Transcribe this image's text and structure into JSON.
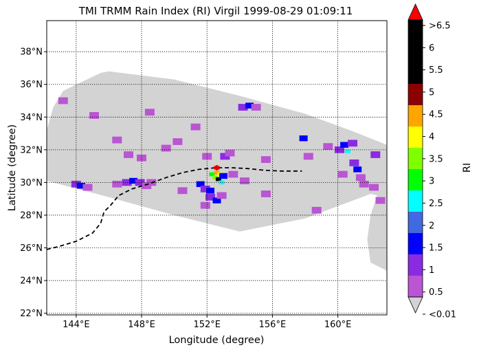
{
  "chart_data": {
    "type": "heatmap",
    "title": "TMI TRMM Rain Index (RI) Virgil 1999-08-29 01:09:11",
    "xlabel": "Longitude (degree)",
    "ylabel": "Latitude (degree)",
    "xlim": [
      142.2,
      163.0
    ],
    "ylim": [
      21.9,
      39.9
    ],
    "grid": true,
    "xticks": [
      {
        "value": 144,
        "label": "144°E"
      },
      {
        "value": 148,
        "label": "148°E"
      },
      {
        "value": 152,
        "label": "152°E"
      },
      {
        "value": 156,
        "label": "156°E"
      },
      {
        "value": 160,
        "label": "160°E"
      }
    ],
    "yticks": [
      {
        "value": 22,
        "label": "22°N"
      },
      {
        "value": 24,
        "label": "24°N"
      },
      {
        "value": 26,
        "label": "26°N"
      },
      {
        "value": 28,
        "label": "28°N"
      },
      {
        "value": 30,
        "label": "30°N"
      },
      {
        "value": 32,
        "label": "32°N"
      },
      {
        "value": 34,
        "label": "34°N"
      },
      {
        "value": 36,
        "label": "36°N"
      },
      {
        "value": 38,
        "label": "38°N"
      }
    ],
    "swath": [
      [
        143.2,
        35.6
      ],
      [
        145.5,
        36.7
      ],
      [
        146.0,
        36.8
      ],
      [
        150.0,
        36.3
      ],
      [
        154.0,
        35.3
      ],
      [
        158.0,
        34.2
      ],
      [
        161.0,
        33.1
      ],
      [
        163.0,
        32.3
      ],
      [
        163.0,
        24.6
      ],
      [
        162.0,
        25.1
      ],
      [
        161.8,
        26.5
      ],
      [
        162.0,
        28.0
      ],
      [
        162.4,
        29.2
      ],
      [
        162.0,
        29.3
      ],
      [
        158.0,
        27.8
      ],
      [
        154.0,
        27.0
      ],
      [
        150.0,
        28.0
      ],
      [
        146.0,
        29.1
      ],
      [
        142.2,
        30.1
      ],
      [
        142.2,
        33.2
      ],
      [
        142.6,
        34.6
      ]
    ],
    "swath_color": "#d3d3d3",
    "rain_cells": [
      {
        "lon": 147.1,
        "lat": 30.0,
        "ri": 0.8
      },
      {
        "lon": 147.5,
        "lat": 30.1,
        "ri": 1.2
      },
      {
        "lon": 147.9,
        "lat": 30.0,
        "ri": 0.6
      },
      {
        "lon": 148.3,
        "lat": 29.8,
        "ri": 0.4
      },
      {
        "lon": 148.6,
        "lat": 30.0,
        "ri": 0.3
      },
      {
        "lon": 144.0,
        "lat": 29.9,
        "ri": 0.5
      },
      {
        "lon": 144.3,
        "lat": 29.8,
        "ri": 1.1
      },
      {
        "lon": 144.7,
        "lat": 29.7,
        "ri": 0.3
      },
      {
        "lon": 146.5,
        "lat": 29.9,
        "ri": 0.2
      },
      {
        "lon": 151.6,
        "lat": 29.9,
        "ri": 1.3
      },
      {
        "lon": 151.9,
        "lat": 29.6,
        "ri": 0.8
      },
      {
        "lon": 152.2,
        "lat": 29.5,
        "ri": 1.1
      },
      {
        "lon": 152.3,
        "lat": 30.5,
        "ri": 2.5
      },
      {
        "lon": 152.5,
        "lat": 30.3,
        "ri": 3.2
      },
      {
        "lon": 152.6,
        "lat": 30.6,
        "ri": 4.2
      },
      {
        "lon": 152.7,
        "lat": 30.2,
        "ri": 5.8
      },
      {
        "lon": 152.8,
        "lat": 30.5,
        "ri": 3.7
      },
      {
        "lon": 152.9,
        "lat": 30.0,
        "ri": 2.1
      },
      {
        "lon": 152.6,
        "lat": 30.9,
        "ri": 6.8
      },
      {
        "lon": 153.0,
        "lat": 30.4,
        "ri": 1.4
      },
      {
        "lon": 152.2,
        "lat": 29.1,
        "ri": 0.6
      },
      {
        "lon": 152.6,
        "lat": 28.9,
        "ri": 1.2
      },
      {
        "lon": 152.9,
        "lat": 29.2,
        "ri": 0.4
      },
      {
        "lon": 151.9,
        "lat": 28.6,
        "ri": 0.3
      },
      {
        "lon": 153.1,
        "lat": 31.6,
        "ri": 0.6
      },
      {
        "lon": 153.4,
        "lat": 31.8,
        "ri": 0.4
      },
      {
        "lon": 152.0,
        "lat": 31.6,
        "ri": 0.3
      },
      {
        "lon": 153.6,
        "lat": 30.5,
        "ri": 0.3
      },
      {
        "lon": 154.3,
        "lat": 30.1,
        "ri": 0.2
      },
      {
        "lon": 154.2,
        "lat": 34.6,
        "ri": 0.6
      },
      {
        "lon": 154.6,
        "lat": 34.7,
        "ri": 1.3
      },
      {
        "lon": 155.0,
        "lat": 34.6,
        "ri": 0.4
      },
      {
        "lon": 155.6,
        "lat": 31.4,
        "ri": 0.2
      },
      {
        "lon": 157.9,
        "lat": 32.7,
        "ri": 1.2
      },
      {
        "lon": 158.2,
        "lat": 31.6,
        "ri": 0.2
      },
      {
        "lon": 160.1,
        "lat": 32.0,
        "ri": 0.5
      },
      {
        "lon": 160.4,
        "lat": 32.3,
        "ri": 1.3
      },
      {
        "lon": 160.6,
        "lat": 31.9,
        "ri": 2.3
      },
      {
        "lon": 160.9,
        "lat": 32.4,
        "ri": 0.7
      },
      {
        "lon": 161.0,
        "lat": 31.2,
        "ri": 0.6
      },
      {
        "lon": 161.2,
        "lat": 30.8,
        "ri": 1.2
      },
      {
        "lon": 161.4,
        "lat": 30.3,
        "ri": 0.4
      },
      {
        "lon": 162.3,
        "lat": 31.7,
        "ri": 0.5
      },
      {
        "lon": 161.6,
        "lat": 29.9,
        "ri": 0.3
      },
      {
        "lon": 162.2,
        "lat": 29.7,
        "ri": 0.3
      },
      {
        "lon": 162.6,
        "lat": 28.9,
        "ri": 0.3
      },
      {
        "lon": 159.4,
        "lat": 32.2,
        "ri": 0.3
      },
      {
        "lon": 160.3,
        "lat": 30.5,
        "ri": 0.3
      },
      {
        "lon": 143.2,
        "lat": 35.0,
        "ri": 0.3
      },
      {
        "lon": 145.1,
        "lat": 34.1,
        "ri": 0.2
      },
      {
        "lon": 148.5,
        "lat": 34.3,
        "ri": 0.2
      },
      {
        "lon": 149.5,
        "lat": 32.1,
        "ri": 0.3
      },
      {
        "lon": 150.2,
        "lat": 32.5,
        "ri": 0.3
      },
      {
        "lon": 151.3,
        "lat": 33.4,
        "ri": 0.2
      },
      {
        "lon": 147.2,
        "lat": 31.7,
        "ri": 0.3
      },
      {
        "lon": 148.0,
        "lat": 31.5,
        "ri": 0.2
      },
      {
        "lon": 146.5,
        "lat": 32.6,
        "ri": 0.2
      },
      {
        "lon": 155.6,
        "lat": 29.3,
        "ri": 0.2
      },
      {
        "lon": 158.7,
        "lat": 28.3,
        "ri": 0.2
      },
      {
        "lon": 150.5,
        "lat": 29.5,
        "ri": 0.2
      }
    ],
    "track": [
      [
        142.2,
        25.9
      ],
      [
        143.0,
        26.1
      ],
      [
        144.0,
        26.4
      ],
      [
        145.0,
        26.9
      ],
      [
        145.5,
        27.5
      ],
      [
        145.7,
        28.2
      ],
      [
        146.1,
        28.6
      ],
      [
        146.6,
        29.2
      ],
      [
        147.4,
        29.6
      ],
      [
        148.4,
        29.9
      ],
      [
        149.5,
        30.3
      ],
      [
        150.5,
        30.6
      ],
      [
        151.5,
        30.8
      ],
      [
        152.5,
        30.9
      ],
      [
        153.5,
        30.9
      ],
      [
        154.5,
        30.85
      ],
      [
        155.5,
        30.75
      ],
      [
        156.5,
        30.7
      ],
      [
        157.8,
        30.7
      ]
    ],
    "storm_marker": {
      "lon": 152.6,
      "lat": 30.9
    },
    "colorbar": {
      "label": "RI",
      "under_label": "<0.01",
      "over_label": ">6.5",
      "under_color": "#d3d3d3",
      "over_color": "#ff0000",
      "bounds": [
        0.01,
        0.5,
        1,
        1.5,
        2,
        2.5,
        3,
        3.5,
        4,
        4.5,
        5,
        6.5
      ],
      "colors": [
        "#ba55d3",
        "#8a2be2",
        "#0000ff",
        "#4169e1",
        "#00ffff",
        "#00ff00",
        "#7fff00",
        "#ffff00",
        "#ffa500",
        "#8b0000",
        "#000000"
      ],
      "tick_labels": [
        "<0.01",
        "0.5",
        "1",
        "1.5",
        "2",
        "2.5",
        "3",
        "3.5",
        "4",
        "4.5",
        "5",
        "5.5",
        "6",
        ">6.5"
      ]
    }
  }
}
